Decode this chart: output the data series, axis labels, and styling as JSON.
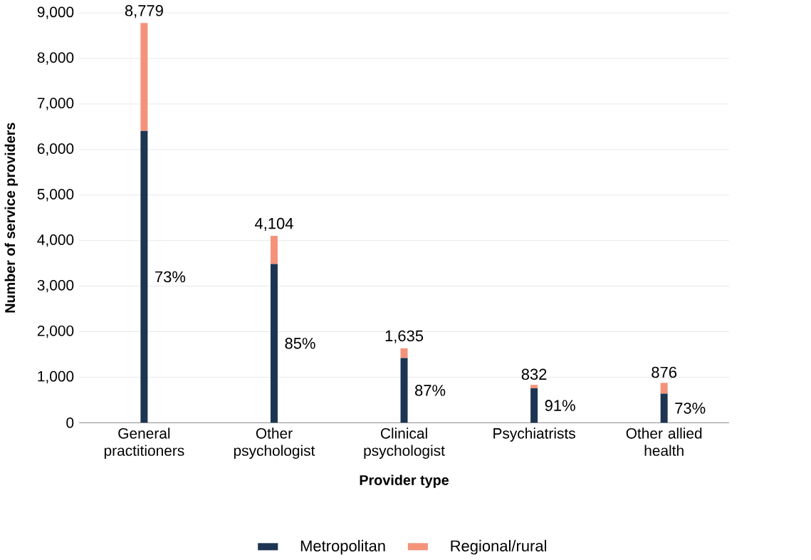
{
  "chart_data": {
    "type": "bar",
    "stacked": true,
    "categories": [
      "General practitioners",
      "Other psychologist",
      "Clinical psychologist",
      "Psychiatrists",
      "Other allied health"
    ],
    "series": [
      {
        "name": "Metropolitan",
        "color": "#1d3552",
        "values": [
          6409,
          3488,
          1422,
          757,
          639
        ]
      },
      {
        "name": "Regional/rural",
        "color": "#f4937a",
        "values": [
          2370,
          616,
          213,
          75,
          237
        ]
      }
    ],
    "totals": [
      "8,779",
      "4,104",
      "1,635",
      "832",
      "876"
    ],
    "annotations": [
      "73%",
      "85%",
      "87%",
      "91%",
      "73%"
    ],
    "xlabel": "Provider type",
    "ylabel": "Number of service providers",
    "ylim": [
      0,
      9000
    ],
    "yticks": [
      0,
      {
        "value": 1000,
        "label": "1,000"
      },
      {
        "value": 2000,
        "label": "2,000"
      },
      {
        "value": 3000,
        "label": "3,000"
      },
      {
        "value": 4000,
        "label": "4,000"
      },
      {
        "value": 5000,
        "label": "5,000"
      },
      {
        "value": 6000,
        "label": "6,000"
      },
      {
        "value": 7000,
        "label": "7,000"
      },
      {
        "value": 8000,
        "label": "8,000"
      },
      {
        "value": 9000,
        "label": "9,000"
      }
    ],
    "grid": "y",
    "legend": "bottom"
  }
}
